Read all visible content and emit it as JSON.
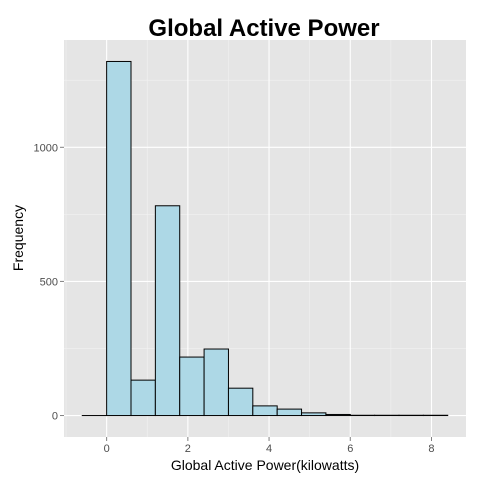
{
  "chart_data": {
    "type": "bar",
    "title": "Global Active Power",
    "xlabel": "Global Active Power(kilowatts)",
    "ylabel": "Frequency",
    "bin_width": 0.6,
    "bins": [
      {
        "x_start": -0.6,
        "x_end": 0.0,
        "value": 0
      },
      {
        "x_start": 0.0,
        "x_end": 0.6,
        "value": 1320
      },
      {
        "x_start": 0.6,
        "x_end": 1.2,
        "value": 132
      },
      {
        "x_start": 1.2,
        "x_end": 1.8,
        "value": 782
      },
      {
        "x_start": 1.8,
        "x_end": 2.4,
        "value": 218
      },
      {
        "x_start": 2.4,
        "x_end": 3.0,
        "value": 248
      },
      {
        "x_start": 3.0,
        "x_end": 3.6,
        "value": 102
      },
      {
        "x_start": 3.6,
        "x_end": 4.2,
        "value": 36
      },
      {
        "x_start": 4.2,
        "x_end": 4.8,
        "value": 24
      },
      {
        "x_start": 4.8,
        "x_end": 5.4,
        "value": 10
      },
      {
        "x_start": 5.4,
        "x_end": 6.0,
        "value": 4
      },
      {
        "x_start": 6.0,
        "x_end": 6.6,
        "value": 1
      },
      {
        "x_start": 6.6,
        "x_end": 7.2,
        "value": 1
      },
      {
        "x_start": 7.2,
        "x_end": 7.8,
        "value": 1
      },
      {
        "x_start": 7.8,
        "x_end": 8.4,
        "value": 1
      }
    ],
    "xlim": [
      -1.05,
      8.85
    ],
    "ylim": [
      -80,
      1400
    ],
    "x_ticks": [
      0,
      2,
      4,
      6,
      8
    ],
    "x_tick_labels": [
      "0",
      "2",
      "4",
      "6",
      "8"
    ],
    "y_ticks": [
      0,
      500,
      1000
    ],
    "y_tick_labels": [
      "0",
      "500",
      "1000"
    ],
    "grid": true,
    "legend": "none",
    "colors": {
      "bar_fill": "#add8e6",
      "bar_stroke": "#000000",
      "panel_background": "#e5e5e5",
      "grid_major": "#ffffff",
      "grid_minor": "#f2f2f2",
      "tick_text": "#4d4d4d"
    }
  }
}
